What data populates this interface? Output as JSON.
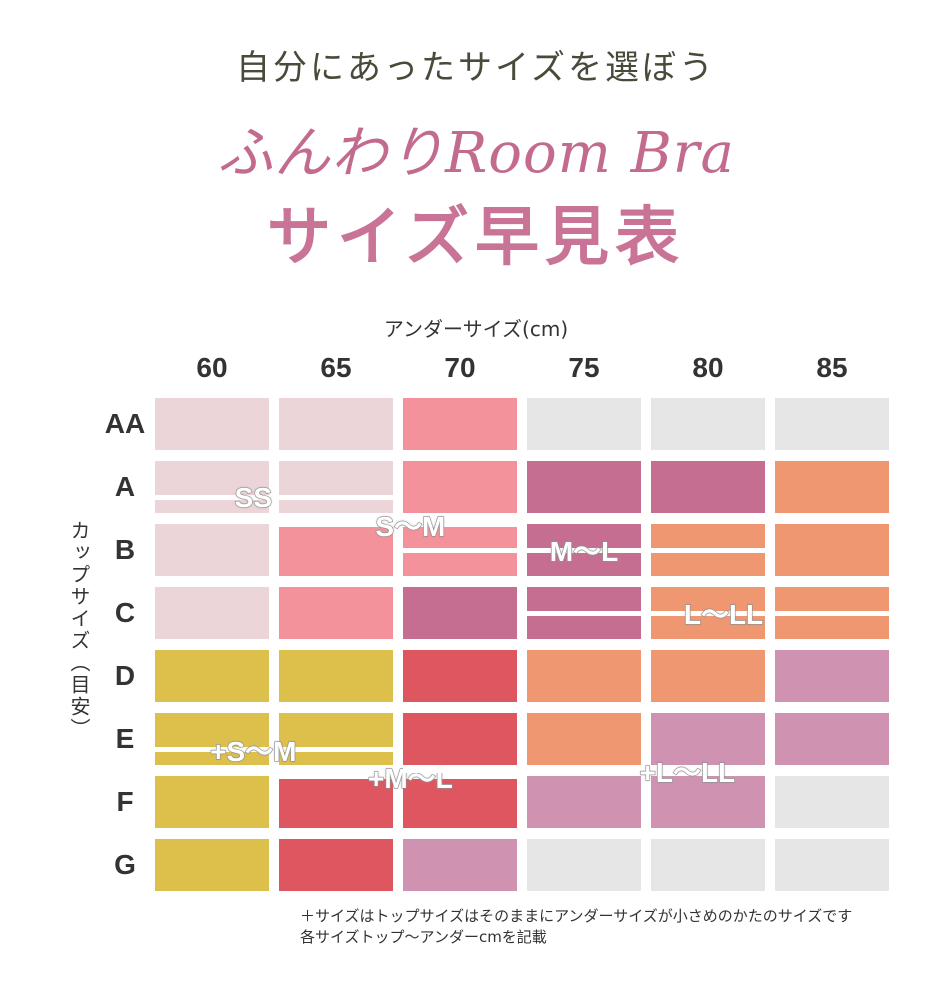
{
  "header": {
    "subtitle": "自分にあったサイズを選ぼう",
    "product": "ふんわりRoom Bra",
    "title": "サイズ早見表"
  },
  "chart_data": {
    "type": "table",
    "xlabel": "アンダーサイズ(cm)",
    "ylabel": "カップサイズ（目安）",
    "columns": [
      "60",
      "65",
      "70",
      "75",
      "80",
      "85"
    ],
    "rows": [
      "AA",
      "A",
      "B",
      "C",
      "D",
      "E",
      "F",
      "G"
    ],
    "sizes": [
      [
        "SS",
        "SS",
        "S〜M",
        "",
        "",
        ""
      ],
      [
        "SS",
        "SS",
        "S〜M",
        "M〜L",
        "M〜L",
        "L〜LL"
      ],
      [
        "SS",
        "S〜M",
        "S〜M",
        "M〜L",
        "L〜LL",
        "L〜LL"
      ],
      [
        "SS",
        "S〜M",
        "M〜L",
        "M〜L",
        "L〜LL",
        "L〜LL"
      ],
      [
        "+S〜M",
        "+S〜M",
        "+M〜L",
        "L〜LL",
        "L〜LL",
        "+L〜LL"
      ],
      [
        "+S〜M",
        "+S〜M",
        "+M〜L",
        "L〜LL",
        "+L〜LL",
        "+L〜LL"
      ],
      [
        "+S〜M",
        "+M〜L",
        "+M〜L",
        "+L〜LL",
        "+L〜LL",
        ""
      ],
      [
        "+S〜M",
        "+M〜L",
        "+L〜LL",
        "",
        "",
        ""
      ]
    ],
    "size_labels": [
      "SS",
      "S〜M",
      "M〜L",
      "L〜LL",
      "+S〜M",
      "+M〜L",
      "+L〜LL"
    ],
    "colors": {
      "SS": "#ecd5d8",
      "S〜M": "#f4929b",
      "M〜L": "#c56e92",
      "L〜LL": "#ef9770",
      "+S〜M": "#ddc04c",
      "+M〜L": "#de5660",
      "+L〜LL": "#d092b1",
      "none": "#e6e6e6"
    }
  },
  "notes": [
    "＋サイズはトップサイズはそのままにアンダーサイズが小さめのかたのサイズです",
    "各サイズトップ〜アンダーcmを記載"
  ]
}
